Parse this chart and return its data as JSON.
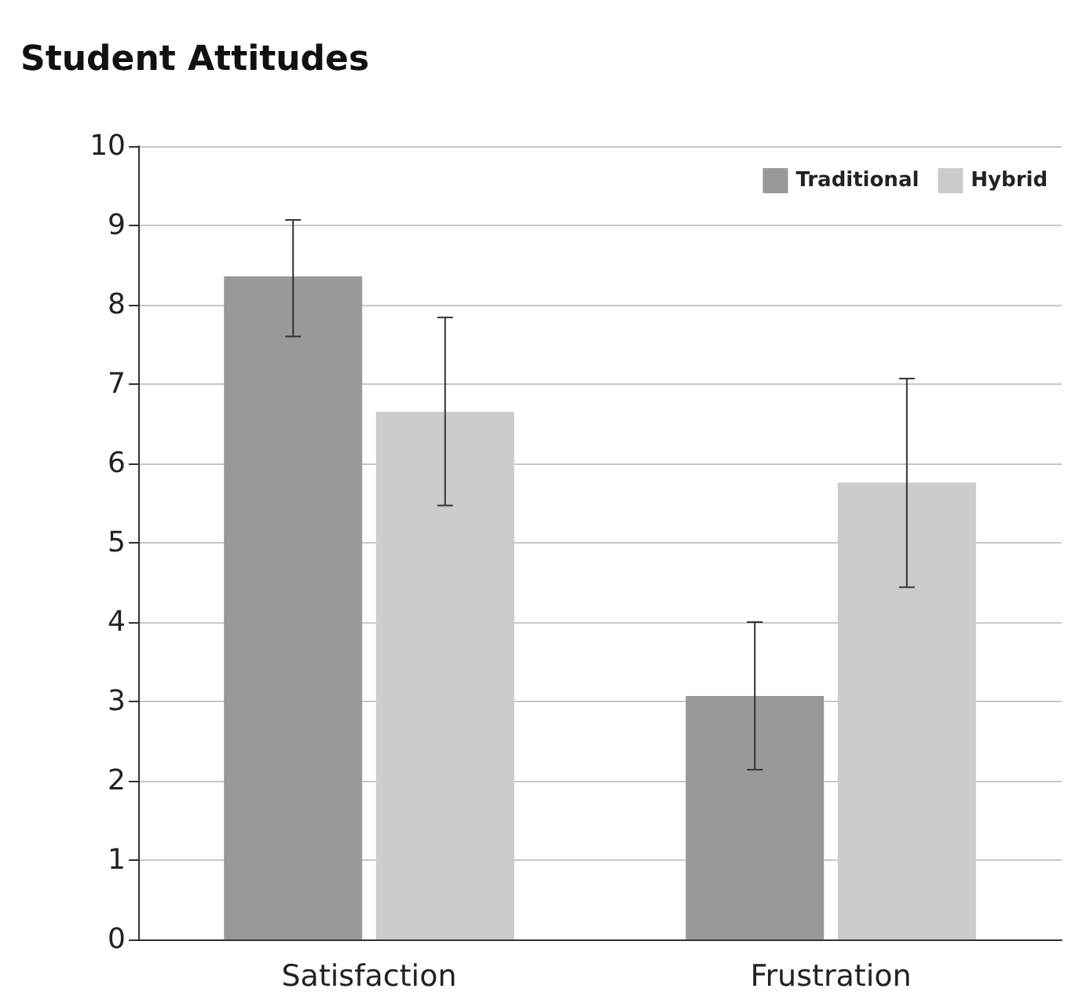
{
  "chart_data": {
    "type": "bar",
    "title": "Student Attitudes",
    "categories": [
      "Satisfaction",
      "Frustration"
    ],
    "series": [
      {
        "name": "Traditional",
        "color": "#999999",
        "values": [
          8.36,
          3.07
        ],
        "errors": [
          [
            7.6,
            9.07
          ],
          [
            2.14,
            4.0
          ]
        ]
      },
      {
        "name": "Hybrid",
        "color": "#cccccc",
        "values": [
          6.65,
          5.76
        ],
        "errors": [
          [
            5.47,
            7.84
          ],
          [
            4.44,
            7.07
          ]
        ]
      }
    ],
    "ylim": [
      0,
      10
    ],
    "yticks": [
      0,
      1,
      2,
      3,
      4,
      5,
      6,
      7,
      8,
      9,
      10
    ],
    "grid": "y",
    "legend": "top right"
  }
}
